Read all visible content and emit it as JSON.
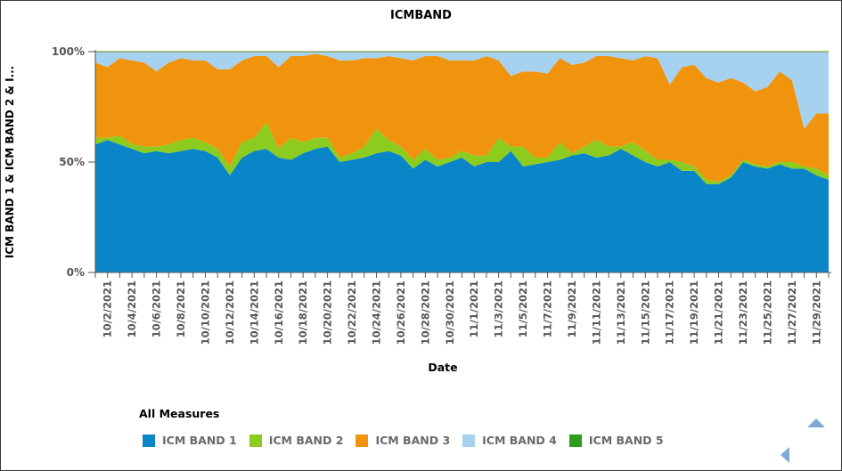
{
  "chart_data": {
    "type": "area",
    "stacking": "percent",
    "title": "ICMBAND",
    "xlabel": "Date",
    "ylabel": "ICM BAND 1 & ICM BAND 2 & I...",
    "ylim": [
      0,
      100
    ],
    "yticks": [
      "0%",
      "50%",
      "100%"
    ],
    "grid": false,
    "legend_title": "All Measures",
    "legend_position": "bottom",
    "x": [
      "10/1/2021",
      "10/2/2021",
      "10/3/2021",
      "10/4/2021",
      "10/5/2021",
      "10/6/2021",
      "10/7/2021",
      "10/8/2021",
      "10/9/2021",
      "10/10/2021",
      "10/11/2021",
      "10/12/2021",
      "10/13/2021",
      "10/14/2021",
      "10/15/2021",
      "10/16/2021",
      "10/17/2021",
      "10/18/2021",
      "10/19/2021",
      "10/20/2021",
      "10/21/2021",
      "10/22/2021",
      "10/23/2021",
      "10/24/2021",
      "10/25/2021",
      "10/26/2021",
      "10/27/2021",
      "10/28/2021",
      "10/29/2021",
      "10/30/2021",
      "10/31/2021",
      "11/1/2021",
      "11/2/2021",
      "11/3/2021",
      "11/4/2021",
      "11/5/2021",
      "11/6/2021",
      "11/7/2021",
      "11/8/2021",
      "11/9/2021",
      "11/10/2021",
      "11/11/2021",
      "11/12/2021",
      "11/13/2021",
      "11/14/2021",
      "11/15/2021",
      "11/16/2021",
      "11/17/2021",
      "11/18/2021",
      "11/19/2021",
      "11/20/2021",
      "11/21/2021",
      "11/22/2021",
      "11/23/2021",
      "11/24/2021",
      "11/25/2021",
      "11/26/2021",
      "11/27/2021",
      "11/28/2021",
      "11/29/2021",
      "11/30/2021"
    ],
    "x_tick_labels": [
      "10/2/2021",
      "10/4/2021",
      "10/6/2021",
      "10/8/2021",
      "10/10/2021",
      "10/12/2021",
      "10/14/2021",
      "10/16/2021",
      "10/18/2021",
      "10/20/2021",
      "10/22/2021",
      "10/24/2021",
      "10/26/2021",
      "10/28/2021",
      "10/30/2021",
      "11/1/2021",
      "11/3/2021",
      "11/5/2021",
      "11/7/2021",
      "11/9/2021",
      "11/11/2021",
      "11/13/2021",
      "11/15/2021",
      "11/17/2021",
      "11/19/2021",
      "11/21/2021",
      "11/23/2021",
      "11/25/2021",
      "11/27/2021",
      "11/29/2021"
    ],
    "series": [
      {
        "name": "ICM BAND 1",
        "color": "#0a86c8",
        "values": [
          58,
          60,
          58,
          56,
          54,
          55,
          54,
          55,
          56,
          55,
          52,
          44,
          52,
          55,
          56,
          52,
          51,
          54,
          56,
          57,
          50,
          51,
          52,
          54,
          55,
          53,
          47,
          51,
          48,
          50,
          52,
          48,
          50,
          50,
          55,
          48,
          49,
          50,
          51,
          53,
          54,
          52,
          53,
          56,
          53,
          50,
          48,
          50,
          46,
          46,
          40,
          40,
          43,
          50,
          48,
          47,
          49,
          47,
          47,
          44,
          42
        ]
      },
      {
        "name": "ICM BAND 2",
        "color": "#8ccc1e",
        "values": [
          3,
          1,
          4,
          2,
          3,
          2,
          4,
          5,
          5,
          4,
          4,
          4,
          7,
          6,
          12,
          4,
          10,
          5,
          5,
          4,
          2,
          3,
          5,
          11,
          5,
          4,
          4,
          5,
          3,
          2,
          3,
          5,
          3,
          11,
          2,
          9,
          3,
          2,
          8,
          1,
          3,
          8,
          4,
          1,
          6,
          5,
          3,
          1,
          4,
          2,
          2,
          1,
          1,
          1,
          1,
          1,
          1,
          3,
          1,
          3,
          2
        ]
      },
      {
        "name": "ICM BAND 3",
        "color": "#f0940e",
        "values": [
          34,
          32,
          35,
          38,
          38,
          34,
          37,
          37,
          35,
          37,
          36,
          44,
          37,
          37,
          30,
          37,
          37,
          39,
          38,
          37,
          44,
          42,
          40,
          32,
          38,
          40,
          45,
          42,
          47,
          44,
          41,
          43,
          45,
          35,
          32,
          34,
          39,
          38,
          38,
          40,
          38,
          38,
          41,
          40,
          37,
          43,
          46,
          34,
          43,
          46,
          46,
          45,
          44,
          35,
          33,
          36,
          41,
          37,
          17,
          25,
          28
        ]
      },
      {
        "name": "ICM BAND 4",
        "color": "#a6d1ef",
        "values": [
          5,
          7,
          3,
          4,
          5,
          9,
          5,
          3,
          4,
          4,
          8,
          8,
          4,
          2,
          2,
          7,
          2,
          2,
          1,
          2,
          4,
          4,
          3,
          3,
          2,
          3,
          4,
          2,
          2,
          4,
          4,
          4,
          2,
          4,
          11,
          9,
          9,
          10,
          3,
          6,
          5,
          2,
          2,
          3,
          4,
          2,
          3,
          15,
          7,
          6,
          12,
          14,
          12,
          14,
          18,
          16,
          9,
          13,
          35,
          28,
          28
        ]
      },
      {
        "name": "ICM BAND 5",
        "color": "#2e9d1a",
        "values": [
          0,
          0,
          0,
          0,
          0,
          0,
          0,
          0,
          0,
          0,
          0,
          0,
          0,
          0,
          0,
          0,
          0,
          0,
          0,
          0,
          0,
          0,
          0,
          0,
          0,
          0,
          0,
          0,
          0,
          0,
          0,
          0,
          0,
          0,
          0,
          0,
          0,
          0,
          0,
          0,
          0,
          0,
          0,
          0,
          0,
          0,
          0,
          0,
          0,
          0,
          0,
          0,
          0,
          0,
          0,
          0,
          0,
          0,
          0,
          0,
          0
        ]
      }
    ]
  },
  "nav": {
    "up_icon": "triangle-up-icon",
    "left_icon": "triangle-left-icon"
  }
}
